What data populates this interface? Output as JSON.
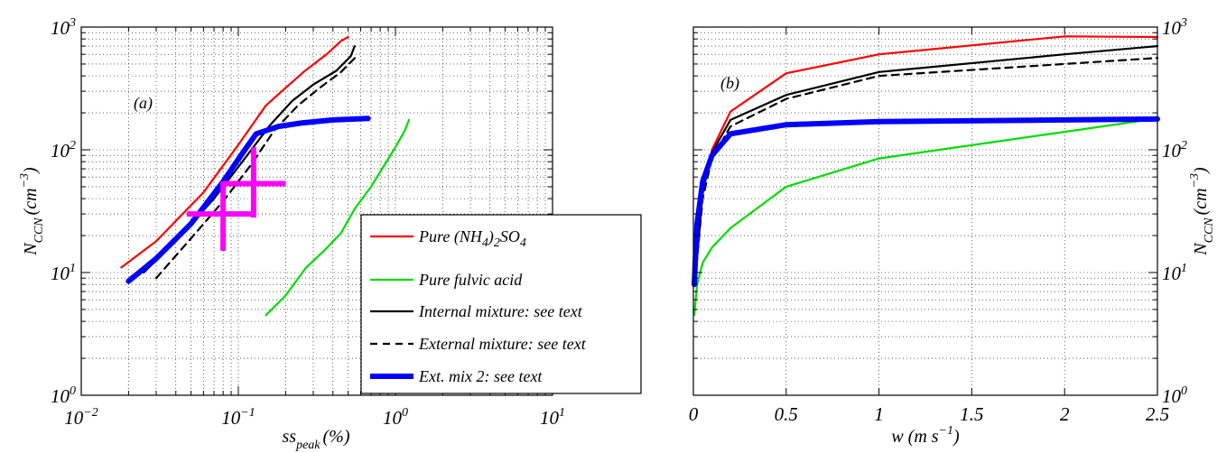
{
  "chart_data": [
    {
      "type": "line",
      "panel_label": "(a)",
      "xscale": "log",
      "yscale": "log",
      "xlim": [
        0.01,
        10
      ],
      "ylim": [
        1,
        1000
      ],
      "xlabel": "ss",
      "xlabel_sub": "peak",
      "xlabel_unit": "(%)",
      "ylabel": "N",
      "ylabel_sub": "CCN",
      "ylabel_unit_base": "(cm",
      "ylabel_unit_exp": "−3",
      "ylabel_unit_close": ")",
      "xticks": [
        {
          "base": "10",
          "exp": "−2"
        },
        {
          "base": "10",
          "exp": "−1"
        },
        {
          "base": "10",
          "exp": "0"
        },
        {
          "base": "10",
          "exp": "1"
        }
      ],
      "yticks": [
        {
          "base": "10",
          "exp": "0"
        },
        {
          "base": "10",
          "exp": "1"
        },
        {
          "base": "10",
          "exp": "2"
        },
        {
          "base": "10",
          "exp": "3"
        }
      ],
      "grid": true,
      "legend_position": "lower-right",
      "series": [
        {
          "name": "Pure (NH4)2SO4",
          "color": "#ff0000",
          "width": 2.2,
          "dash": "",
          "x": [
            0.018,
            0.03,
            0.06,
            0.1,
            0.15,
            0.2,
            0.26,
            0.37,
            0.45,
            0.5
          ],
          "y": [
            11,
            18,
            45,
            110,
            230,
            320,
            430,
            610,
            770,
            830
          ]
        },
        {
          "name": "Pure fulvic acid",
          "color": "#00dd00",
          "width": 2.2,
          "dash": "",
          "x": [
            0.15,
            0.2,
            0.27,
            0.35,
            0.45,
            0.55,
            0.7,
            0.85,
            1.0,
            1.15,
            1.22
          ],
          "y": [
            4.5,
            6.5,
            11,
            15,
            21,
            33,
            50,
            75,
            105,
            145,
            175
          ]
        },
        {
          "name": "Internal mixture: see text",
          "color": "#000000",
          "width": 2.2,
          "dash": "",
          "x": [
            0.025,
            0.04,
            0.07,
            0.11,
            0.16,
            0.22,
            0.3,
            0.42,
            0.52,
            0.55
          ],
          "y": [
            10,
            18,
            40,
            85,
            160,
            250,
            340,
            440,
            580,
            700
          ]
        },
        {
          "name": "External mixture: see text",
          "color": "#000000",
          "width": 2.2,
          "dash": "8,6",
          "x": [
            0.03,
            0.05,
            0.08,
            0.12,
            0.17,
            0.24,
            0.33,
            0.45,
            0.56
          ],
          "y": [
            9,
            19,
            38,
            75,
            145,
            230,
            320,
            430,
            570
          ]
        },
        {
          "name": "Ext. mix 2: see text",
          "color": "#0000ff",
          "width": 6,
          "dash": "",
          "x": [
            0.02,
            0.03,
            0.05,
            0.08,
            0.11,
            0.13,
            0.18,
            0.25,
            0.4,
            0.67
          ],
          "y": [
            8.5,
            13,
            25,
            55,
            100,
            135,
            155,
            165,
            175,
            180
          ]
        }
      ],
      "error_crosses": [
        {
          "x": 0.08,
          "y": 30,
          "xerr": [
            0.047,
            0.125
          ],
          "yerr": [
            15,
            55
          ],
          "color": "#ff00ff"
        },
        {
          "x": 0.125,
          "y": 53,
          "xerr": [
            0.08,
            0.2
          ],
          "yerr": [
            28,
            105
          ],
          "color": "#ff00ff"
        }
      ],
      "legend": [
        {
          "text": "Pure (NH",
          "sub1": "4",
          "mid": ")",
          "sub2": "2",
          "mid2": "SO",
          "sub3": "4"
        },
        {
          "text": "Pure fulvic acid"
        },
        {
          "text": "Internal mixture: see text"
        },
        {
          "text": "External mixture: see text"
        },
        {
          "text": "Ext. mix 2: see text"
        }
      ]
    },
    {
      "type": "line",
      "panel_label": "(b)",
      "xscale": "linear",
      "yscale": "log",
      "xlim": [
        0,
        2.5
      ],
      "ylim": [
        1,
        1000
      ],
      "xlabel": "w (m s",
      "xlabel_exp": "−1",
      "xlabel_close": ")",
      "ylabel": "N",
      "ylabel_sub": "CCN",
      "ylabel_unit_base": "(cm",
      "ylabel_unit_exp": "−3",
      "ylabel_unit_close": ")",
      "xticks": [
        "0",
        "0.5",
        "1",
        "1.5",
        "2",
        "2.5"
      ],
      "yticks": [
        {
          "base": "10",
          "exp": "0"
        },
        {
          "base": "10",
          "exp": "1"
        },
        {
          "base": "10",
          "exp": "2"
        },
        {
          "base": "10",
          "exp": "3"
        }
      ],
      "grid": true,
      "series": [
        {
          "name": "Pure (NH4)2SO4",
          "color": "#ff0000",
          "width": 2.2,
          "dash": "",
          "x": [
            0.01,
            0.05,
            0.1,
            0.2,
            0.5,
            1.0,
            2.0,
            2.5
          ],
          "y": [
            9,
            45,
            100,
            205,
            420,
            600,
            840,
            830
          ]
        },
        {
          "name": "Pure fulvic acid",
          "color": "#00dd00",
          "width": 2.2,
          "dash": "",
          "x": [
            0.005,
            0.02,
            0.05,
            0.1,
            0.2,
            0.5,
            1.0,
            2.0,
            2.5
          ],
          "y": [
            4.5,
            8,
            12,
            16,
            23,
            50,
            85,
            140,
            180
          ]
        },
        {
          "name": "Internal mixture: see text",
          "color": "#000000",
          "width": 2.2,
          "dash": "",
          "x": [
            0.01,
            0.05,
            0.1,
            0.2,
            0.5,
            1.0,
            2.0,
            2.5
          ],
          "y": [
            9,
            45,
            95,
            175,
            280,
            430,
            600,
            700
          ]
        },
        {
          "name": "External mixture: see text",
          "color": "#000000",
          "width": 2.2,
          "dash": "8,6",
          "x": [
            0.01,
            0.05,
            0.1,
            0.2,
            0.5,
            1.0,
            2.0,
            2.5
          ],
          "y": [
            9,
            40,
            85,
            155,
            260,
            400,
            500,
            560
          ]
        },
        {
          "name": "Ext. mix 2: see text",
          "color": "#0000ff",
          "width": 6,
          "dash": "",
          "x": [
            0.005,
            0.02,
            0.05,
            0.1,
            0.2,
            0.5,
            1.0,
            2.0,
            2.5
          ],
          "y": [
            8,
            25,
            55,
            90,
            135,
            160,
            170,
            175,
            178
          ]
        }
      ]
    }
  ]
}
